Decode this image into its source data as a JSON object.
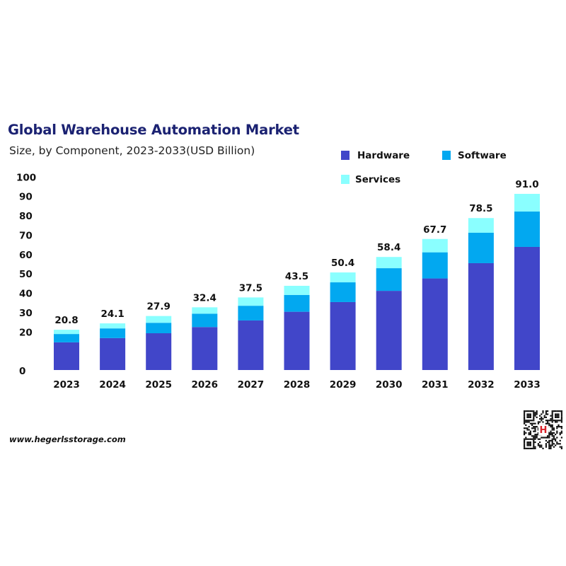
{
  "chart_data": {
    "type": "bar",
    "stacked": true,
    "title": "Global Warehouse Automation Market",
    "subtitle": "Size, by Component, 2023-2033(USD Billion)",
    "xlabel": "",
    "ylabel": "",
    "ylim": [
      0,
      100
    ],
    "yticks": [
      0,
      20,
      30,
      40,
      50,
      60,
      70,
      80,
      90,
      100
    ],
    "grid": false,
    "legend_position": "top-right",
    "categories": [
      "2023",
      "2024",
      "2025",
      "2026",
      "2027",
      "2028",
      "2029",
      "2030",
      "2031",
      "2032",
      "2033"
    ],
    "totals": [
      "20.8",
      "24.1",
      "27.9",
      "32.4",
      "37.5",
      "43.5",
      "50.4",
      "58.4",
      "67.7",
      "78.5",
      "91.0"
    ],
    "series": [
      {
        "name": "Hardware",
        "color": "#4146c9",
        "values": [
          14.3,
          16.5,
          19.0,
          22.2,
          25.6,
          30.1,
          35.1,
          40.9,
          47.3,
          55.2,
          63.6
        ]
      },
      {
        "name": "Software",
        "color": "#02a8f0",
        "values": [
          4.3,
          5.0,
          5.4,
          6.9,
          7.6,
          8.7,
          10.2,
          11.7,
          13.5,
          15.7,
          18.3
        ]
      },
      {
        "name": "Services",
        "color": "#8affff",
        "values": [
          2.2,
          2.6,
          3.5,
          3.3,
          4.3,
          4.7,
          5.1,
          5.8,
          6.9,
          7.6,
          9.1
        ]
      }
    ]
  },
  "footer": {
    "website": "www.hegerlsstorage.com"
  },
  "qr_logo_text": "H"
}
